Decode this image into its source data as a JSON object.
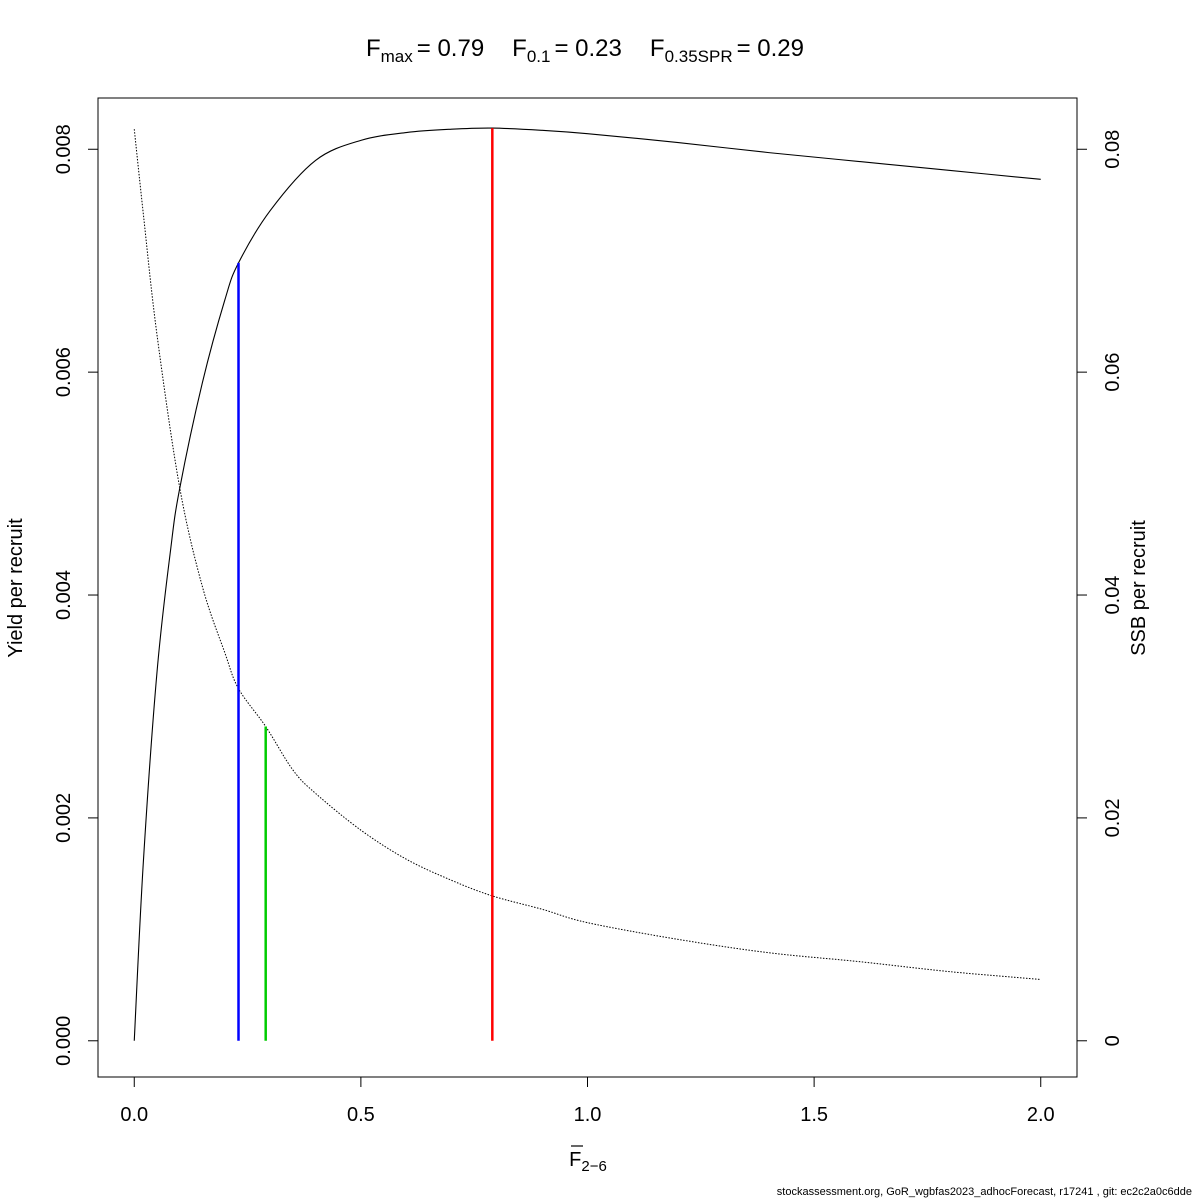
{
  "chart_data": {
    "type": "line",
    "title": {
      "fmax_label": "F",
      "fmax_sub": "max",
      "fmax_value": "= 0.79",
      "f01_label": "F",
      "f01_sub": "0.1",
      "f01_value": "= 0.23",
      "fspr_label": "F",
      "fspr_sub": "0.35SPR",
      "fspr_value": "= 0.29"
    },
    "xlabel": {
      "main": "F",
      "sub": "2−6"
    },
    "ylabel": "Yield per recruit",
    "y2label": "SSB per recruit",
    "xlim": [
      -0.08,
      2.08
    ],
    "ylim": [
      -0.000325,
      0.00846
    ],
    "y2lim": [
      -0.00325,
      0.0846
    ],
    "x_ticks": [
      0.0,
      0.5,
      1.0,
      1.5,
      2.0
    ],
    "x_tick_labels": [
      "0.0",
      "0.5",
      "1.0",
      "1.5",
      "2.0"
    ],
    "y_ticks": [
      0.0,
      0.002,
      0.004,
      0.006,
      0.008
    ],
    "y_tick_labels": [
      "0.000",
      "0.002",
      "0.004",
      "0.006",
      "0.008"
    ],
    "y2_ticks": [
      0,
      0.02,
      0.04,
      0.06,
      0.08
    ],
    "y2_tick_labels": [
      "0",
      "0.02",
      "0.04",
      "0.06",
      "0.08"
    ],
    "grid": false,
    "series": [
      {
        "axis": "left",
        "style": "solid",
        "x": [
          0.0,
          0.02,
          0.05,
          0.08,
          0.1,
          0.15,
          0.2,
          0.23,
          0.3,
          0.4,
          0.5,
          0.6,
          0.7,
          0.79,
          0.9,
          1.0,
          1.2,
          1.4,
          1.6,
          1.8,
          2.0
        ],
        "values": [
          0.0,
          0.0016,
          0.0033,
          0.0044,
          0.00495,
          0.0059,
          0.00665,
          0.00698,
          0.00745,
          0.0079,
          0.00808,
          0.00815,
          0.00818,
          0.00819,
          0.00817,
          0.00814,
          0.00806,
          0.00797,
          0.00789,
          0.00781,
          0.00773
        ]
      },
      {
        "axis": "right",
        "style": "dotted",
        "x": [
          0.0,
          0.02,
          0.05,
          0.1,
          0.15,
          0.2,
          0.23,
          0.29,
          0.35,
          0.4,
          0.5,
          0.6,
          0.7,
          0.79,
          0.9,
          1.0,
          1.2,
          1.4,
          1.6,
          1.8,
          2.0
        ],
        "values": [
          0.0818,
          0.0742,
          0.0634,
          0.0497,
          0.0408,
          0.0348,
          0.0316,
          0.0282,
          0.0243,
          0.0222,
          0.0189,
          0.0163,
          0.0144,
          0.013,
          0.0118,
          0.0106,
          0.0091,
          0.0079,
          0.0071,
          0.0062,
          0.0055
        ]
      }
    ],
    "reference_lines": [
      {
        "name": "F0.1",
        "x": 0.23,
        "y_top": 0.00698,
        "axis": "left",
        "color": "#0000ff"
      },
      {
        "name": "F0.35SPR",
        "x": 0.29,
        "y_top": 0.0282,
        "axis": "right",
        "color": "#00cc00"
      },
      {
        "name": "Fmax",
        "x": 0.79,
        "y_top": 0.00819,
        "axis": "left",
        "color": "#ff0000"
      }
    ]
  },
  "footer": "stockassessment.org, GoR_wgbfas2023_adhocForecast, r17241 , git: ec2c2a0c6dde"
}
